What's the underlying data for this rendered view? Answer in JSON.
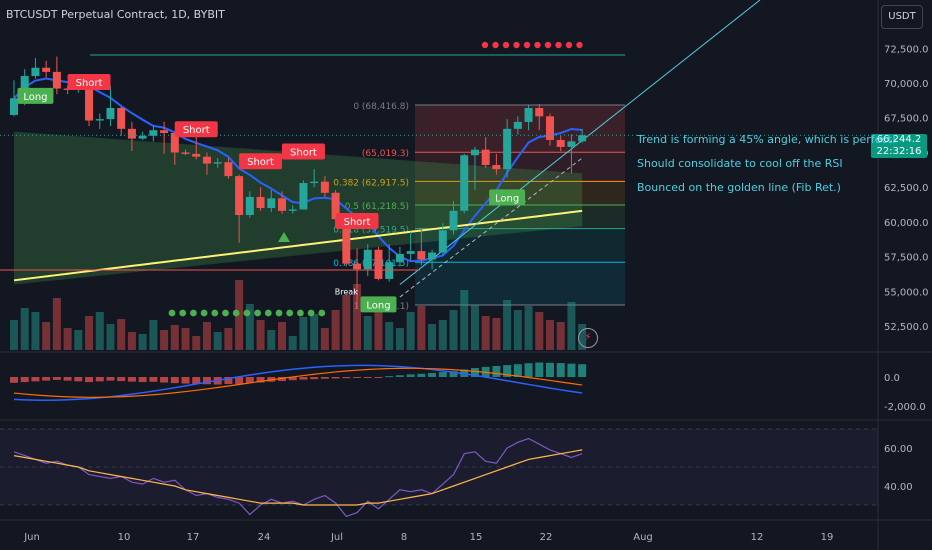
{
  "header": {
    "title": "BTCUSDT Perpetual Contract, 1D, BYBIT",
    "currency_button": "USDT"
  },
  "last_price": {
    "price": "66,244.2",
    "countdown": "22:32:16"
  },
  "notes": [
    "Trend is forming a 45% angle, which is perfect!",
    "Should consolidate to cool off the RSI",
    "Bounced on the golden line (Fib Ret.)"
  ],
  "colors": {
    "background": "#131722",
    "up": "#26a69a",
    "down": "#ef5350",
    "ma_blue": "#2962ff",
    "ma_yellow": "#fff176",
    "accent": "#4dd0e1"
  },
  "icons": [
    "lightning-bolt-icon"
  ],
  "chart_data": [
    {
      "type": "candlestick",
      "title": "BTCUSDT Perpetual Contract, 1D, BYBIT",
      "x": [
        "Jun 3",
        "Jun 4",
        "Jun 5",
        "Jun 6",
        "Jun 7",
        "Jun 8",
        "Jun 9",
        "Jun 10",
        "Jun 11",
        "Jun 12",
        "Jun 13",
        "Jun 14",
        "Jun 15",
        "Jun 16",
        "Jun 17",
        "Jun 18",
        "Jun 19",
        "Jun 20",
        "Jun 21",
        "Jun 22",
        "Jun 23",
        "Jun 24",
        "Jun 25",
        "Jun 26",
        "Jun 27",
        "Jun 28",
        "Jun 29",
        "Jun 30",
        "Jul 1",
        "Jul 2",
        "Jul 3",
        "Jul 4",
        "Jul 5",
        "Jul 6",
        "Jul 7",
        "Jul 8",
        "Jul 9",
        "Jul 10",
        "Jul 11",
        "Jul 12",
        "Jul 13",
        "Jul 14",
        "Jul 15",
        "Jul 16",
        "Jul 17",
        "Jul 18",
        "Jul 19",
        "Jul 20",
        "Jul 21",
        "Jul 22",
        "Jul 23",
        "Jul 24",
        "Jul 25",
        "Jul 26"
      ],
      "ohlc": [
        [
          67700,
          70200,
          67600,
          68900
        ],
        [
          68900,
          71000,
          68400,
          70500
        ],
        [
          70500,
          71800,
          70300,
          71100
        ],
        [
          71100,
          71600,
          70400,
          70800
        ],
        [
          70800,
          71900,
          69200,
          69600
        ],
        [
          69600,
          69800,
          69200,
          69500
        ],
        [
          69500,
          70100,
          69300,
          69700
        ],
        [
          69700,
          69800,
          66900,
          67300
        ],
        [
          67300,
          67800,
          66700,
          67400
        ],
        [
          67400,
          69800,
          66900,
          68200
        ],
        [
          68200,
          68300,
          66200,
          66700
        ],
        [
          66700,
          67200,
          65100,
          66000
        ],
        [
          66000,
          66500,
          65900,
          66200
        ],
        [
          66200,
          66900,
          65800,
          66600
        ],
        [
          66600,
          67200,
          64900,
          66400
        ],
        [
          66400,
          66500,
          64100,
          65000
        ],
        [
          65000,
          65200,
          64800,
          64900
        ],
        [
          64900,
          66200,
          64500,
          64700
        ],
        [
          64700,
          65000,
          63400,
          64200
        ],
        [
          64200,
          64600,
          63900,
          64300
        ],
        [
          64300,
          64600,
          63100,
          63300
        ],
        [
          63300,
          63400,
          58500,
          60500
        ],
        [
          60500,
          62200,
          60300,
          61800
        ],
        [
          61800,
          62500,
          60800,
          61000
        ],
        [
          61000,
          62300,
          60700,
          61700
        ],
        [
          61700,
          62200,
          60600,
          60800
        ],
        [
          60800,
          61200,
          60600,
          60900
        ],
        [
          60900,
          63000,
          60900,
          62800
        ],
        [
          62800,
          63800,
          62500,
          62900
        ],
        [
          62900,
          63300,
          61800,
          62100
        ],
        [
          62100,
          62300,
          59600,
          60200
        ],
        [
          60200,
          60500,
          56800,
          57000
        ],
        [
          57000,
          58100,
          53800,
          56600
        ],
        [
          56600,
          58400,
          56100,
          58000
        ],
        [
          58000,
          58200,
          55800,
          55900
        ],
        [
          55900,
          58400,
          55700,
          57100
        ],
        [
          57100,
          58200,
          56800,
          57700
        ],
        [
          57700,
          59300,
          57200,
          57900
        ],
        [
          57900,
          59500,
          56900,
          57300
        ],
        [
          57300,
          58000,
          56600,
          57800
        ],
        [
          57800,
          59900,
          57600,
          59400
        ],
        [
          59400,
          61500,
          59100,
          60800
        ],
        [
          60800,
          64900,
          60600,
          64800
        ],
        [
          64800,
          65400,
          62300,
          65200
        ],
        [
          65200,
          66100,
          63900,
          64100
        ],
        [
          64100,
          64900,
          63400,
          63800
        ],
        [
          63800,
          67400,
          63200,
          66700
        ],
        [
          66700,
          67600,
          66300,
          67200
        ],
        [
          67200,
          68400,
          66600,
          68200
        ],
        [
          68200,
          68500,
          66600,
          67600
        ],
        [
          67600,
          67800,
          65500,
          65900
        ],
        [
          65900,
          66200,
          65100,
          65400
        ],
        [
          65400,
          66300,
          63500,
          65800
        ],
        [
          65800,
          66700,
          65700,
          66244
        ]
      ],
      "y_ticks": [
        "72,500.0",
        "70,000.0",
        "67,500.0",
        "65,000.0",
        "62,500.0",
        "60,000.0",
        "57,500.0",
        "55,000.0",
        "52,500.0"
      ],
      "x_ticks": [
        "Jun",
        "10",
        "17",
        "24",
        "Jul",
        "8",
        "15",
        "22",
        "Aug",
        "12",
        "19"
      ],
      "fib_levels": [
        {
          "label": "0 (68,416.8)",
          "price": 68416.8
        },
        {
          "label": "(65,019.3)",
          "price": 65019.3
        },
        {
          "label": "0.382 (62,917.5)",
          "price": 62917.5
        },
        {
          "label": "0.5 (61,218.5)",
          "price": 61218.5
        },
        {
          "label": "0.618 (59,519.5)",
          "price": 59519.5
        },
        {
          "label": "0.786 (57,101.5)",
          "price": 57101.5
        },
        {
          "label": "1 (54,020.1)",
          "price": 54020.1
        }
      ],
      "signals": [
        {
          "label": "Short",
          "x": "Jun 10",
          "price": 70000
        },
        {
          "label": "Short",
          "x": "Jun 20",
          "price": 66600
        },
        {
          "label": "Short",
          "x": "Jun 26",
          "price": 64300
        },
        {
          "label": "Short",
          "x": "Jun 30",
          "price": 65000
        },
        {
          "label": "Short",
          "x": "Jul 5",
          "price": 60000
        },
        {
          "label": "Long",
          "x": "Jul 19",
          "price": 61700
        },
        {
          "label": "Long",
          "x": "Jul 7",
          "price": 54000
        },
        {
          "label": "Long",
          "x": "Jun 5",
          "price": 69000
        },
        {
          "label": "Break",
          "x": "Jul 4",
          "price": 55000
        }
      ]
    },
    {
      "type": "histogram",
      "title": "",
      "y_ticks": [
        "0.0",
        "-2,000.0"
      ]
    },
    {
      "type": "line",
      "title": "",
      "y_ticks": [
        "60.00",
        "40.00"
      ],
      "series": [
        {
          "values": [
            58,
            56,
            54,
            52,
            53,
            51,
            50,
            46,
            45,
            44,
            45,
            42,
            41,
            44,
            42,
            43,
            38,
            35,
            36,
            34,
            33,
            31,
            25,
            30,
            33,
            31,
            32,
            30,
            33,
            35,
            31,
            24,
            26,
            32,
            28,
            33,
            38,
            37,
            38,
            36,
            41,
            46,
            57,
            58,
            53,
            52,
            60,
            63,
            65,
            62,
            59,
            57,
            55,
            57
          ]
        },
        {
          "values": [
            56,
            55,
            54,
            53,
            52,
            51,
            50,
            48,
            47,
            46,
            45,
            44,
            43,
            42,
            41,
            40,
            38,
            37,
            36,
            35,
            34,
            33,
            32,
            31,
            31,
            31,
            31,
            30,
            30,
            30,
            30,
            30,
            30,
            31,
            31,
            32,
            33,
            34,
            35,
            36,
            38,
            40,
            42,
            44,
            46,
            48,
            50,
            52,
            54,
            55,
            56,
            57,
            58,
            59
          ]
        }
      ]
    }
  ]
}
